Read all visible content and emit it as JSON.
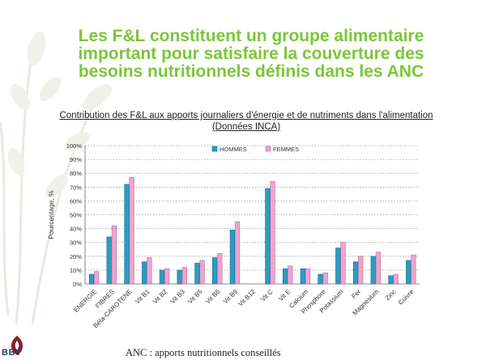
{
  "slide": {
    "title_lines": [
      "Les F&L constituent un groupe alimentaire",
      "important pour satisfaire la couverture des",
      "besoins nutritionnels définis dans les ANC"
    ],
    "footnote": "ANC : apports nutritionnels conseillés",
    "logo_text": "BBV",
    "colors": {
      "title": "#7cc63a",
      "hommes": "#2a9dc3",
      "femmes": "#f0a3cf"
    }
  },
  "chart_data": {
    "type": "bar",
    "title_lines": [
      "Contribution des F&L aux apports journaliers d'énergie et de nutriments dans l'alimentation",
      "(Données INCA)"
    ],
    "ylabel": "Pourcentage, %",
    "xlabel": "",
    "ylim": [
      0,
      100
    ],
    "yticks": [
      "0%",
      "10%",
      "20%",
      "30%",
      "40%",
      "50%",
      "60%",
      "70%",
      "80%",
      "90%",
      "100%"
    ],
    "grid": "horizontal dotted",
    "legend_position": "top",
    "categories": [
      "ENERGIE",
      "FIBRES",
      "Béta-CAROTENE",
      "Vit B1",
      "Vit B2",
      "Vit B3",
      "Vit B5",
      "Vit B6",
      "Vit B9",
      "Vit B12",
      "Vit C",
      "Vit E",
      "Calcium",
      "Phosphore",
      "Potassium",
      "Fer",
      "Magnesium",
      "Zinc",
      "Cuivre"
    ],
    "series": [
      {
        "name": "HOMMES",
        "values": [
          7,
          34,
          72,
          16,
          10,
          10,
          15,
          19,
          39,
          0,
          69,
          11,
          11,
          7,
          26,
          16,
          20,
          6,
          17
        ]
      },
      {
        "name": "FEMMES",
        "values": [
          9,
          42,
          77,
          19,
          11,
          12,
          17,
          22,
          45,
          0,
          74,
          13,
          11,
          8,
          30,
          20,
          23,
          7,
          21
        ]
      }
    ]
  }
}
